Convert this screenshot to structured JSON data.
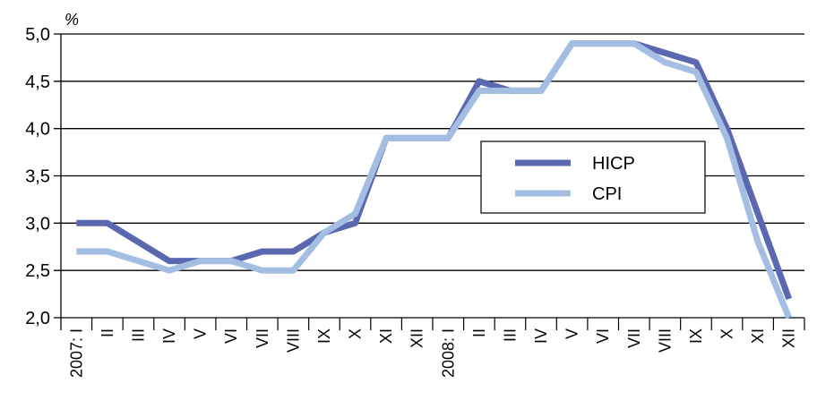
{
  "chart_data": {
    "type": "line",
    "unit_label": "%",
    "categories": [
      "2007: I",
      "II",
      "III",
      "IV",
      "V",
      "VI",
      "VII",
      "VIII",
      "IX",
      "X",
      "XI",
      "XII",
      "2008: I",
      "II",
      "III",
      "IV",
      "V",
      "VI",
      "VII",
      "VIII",
      "IX",
      "X",
      "XI",
      "XII"
    ],
    "ylim": [
      2.0,
      5.0
    ],
    "yticks": [
      "2,0",
      "2,5",
      "3,0",
      "3,5",
      "4,0",
      "4,5",
      "5,0"
    ],
    "ytick_values": [
      2.0,
      2.5,
      3.0,
      3.5,
      4.0,
      4.5,
      5.0
    ],
    "grid": "horizontal",
    "legend_position": "center-right",
    "series": [
      {
        "name": "HICP",
        "color": "#5b68b0",
        "values": [
          3.0,
          3.0,
          2.8,
          2.6,
          2.6,
          2.6,
          2.7,
          2.7,
          2.9,
          3.0,
          3.9,
          3.9,
          3.9,
          4.5,
          4.4,
          4.4,
          4.9,
          4.9,
          4.9,
          4.8,
          4.7,
          4.0,
          3.1,
          2.2
        ]
      },
      {
        "name": "CPI",
        "color": "#a3bde3",
        "values": [
          2.7,
          2.7,
          2.6,
          2.5,
          2.6,
          2.6,
          2.5,
          2.5,
          2.9,
          3.1,
          3.9,
          3.9,
          3.9,
          4.4,
          4.4,
          4.4,
          4.9,
          4.9,
          4.9,
          4.7,
          4.6,
          3.9,
          2.8,
          2.0
        ]
      }
    ]
  }
}
